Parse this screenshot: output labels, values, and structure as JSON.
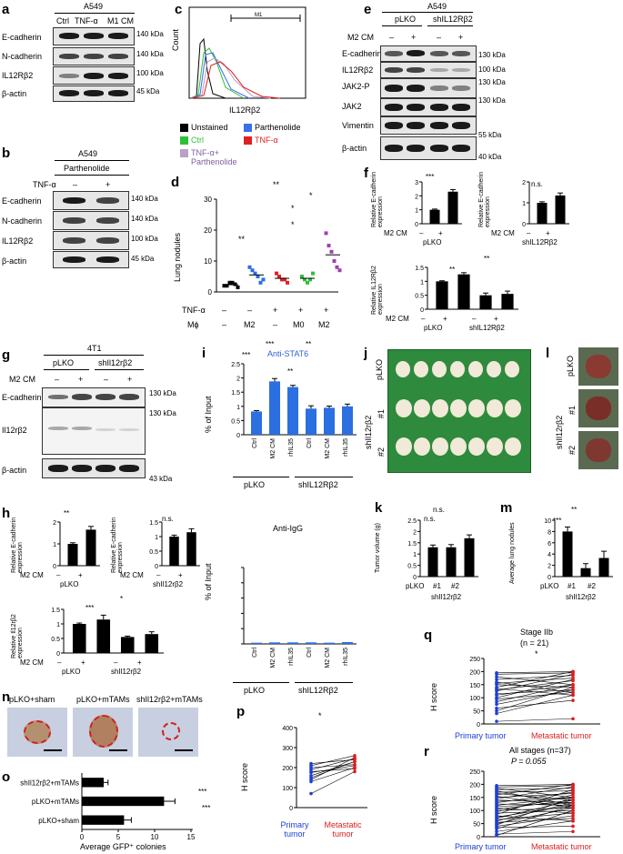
{
  "panels": {
    "a": {
      "letter": "a",
      "cell": "A549",
      "lanes": [
        "Ctrl",
        "TNF-α",
        "M1 CM"
      ],
      "rows": [
        "E-cadherin",
        "N-cadherin",
        "IL12Rβ2",
        "β-actin"
      ],
      "kda": [
        "140 kDa",
        "140 kDa",
        "100 kDa",
        "45 kDa"
      ]
    },
    "b": {
      "letter": "b",
      "cell": "A549",
      "treatment": "Parthenolide",
      "tnf_label": "TNF-α",
      "minus": "–",
      "plus": "+",
      "rows": [
        "E-cadherin",
        "N-cadherin",
        "IL12Rβ2",
        "β-actin"
      ],
      "kda": [
        "140 kDa",
        "140 kDa",
        "100 kDa",
        "45 kDa"
      ]
    },
    "c": {
      "letter": "c",
      "ylabel": "Count",
      "xlabel": "IL12Rβ2",
      "gate": "M1",
      "legend": [
        {
          "label": "Unstained",
          "color": "#000000"
        },
        {
          "label": "Parthenolide",
          "color": "#3a6fe8"
        },
        {
          "label": "Ctrl",
          "color": "#2fbf3b"
        },
        {
          "label": "TNF-α",
          "color": "#e02020"
        },
        {
          "label": "TNF-α+ Parthenolide",
          "color": "#b8a0c8"
        }
      ]
    },
    "d": {
      "letter": "d",
      "ylabel": "Lung nodules",
      "row1_label": "TNF-α",
      "row1": [
        "–",
        "–",
        "+",
        "+",
        "+"
      ],
      "row2_label": "Mϕ",
      "row2": [
        "–",
        "M2",
        "–",
        "M0",
        "M2"
      ],
      "sig": [
        "**",
        "**",
        "*",
        "*",
        "*"
      ]
    },
    "e": {
      "letter": "e",
      "cell": "A549",
      "groups": [
        "pLKO",
        "shIL12Rβ2"
      ],
      "cm_label": "M2 CM",
      "signs": [
        "–",
        "+",
        "–",
        "+"
      ],
      "rows": [
        "E-cadherin",
        "IL12Rβ2",
        "JAK2-P",
        "JAK2",
        "Vimentin",
        "β-actin"
      ],
      "kda": [
        "130 kDa",
        "100 kDa",
        "130 kDa",
        "130 kDa",
        "55 kDa",
        "40 kDa"
      ]
    },
    "f": {
      "letter": "f",
      "ylabel_ecad": "Relative E-cadherin expression",
      "ylabel_il": "Relative IL12Rβ2 expression",
      "cm_label": "M2 CM",
      "signs": [
        "–",
        "+"
      ],
      "groups": [
        "pLKO",
        "shIL12Rβ2"
      ],
      "sig": [
        "***",
        "n.s.",
        "**",
        "**"
      ]
    },
    "g": {
      "letter": "g",
      "cell": "4T1",
      "groups": [
        "pLKO",
        "shIl12rβ2"
      ],
      "cm_label": "M2 CM",
      "signs": [
        "–",
        "+",
        "–",
        "+"
      ],
      "rows": [
        "E-cadherin",
        "Il12rβ2",
        "β-actin"
      ],
      "kda": [
        "130 kDa",
        "130 kDa",
        "43 kDa"
      ]
    },
    "h": {
      "letter": "h",
      "ylabel_ecad": "Relative E-cadherin expression",
      "ylabel_il": "Relative Il12rβ2 expression",
      "cm_label": "M2 CM",
      "signs": [
        "–",
        "+"
      ],
      "groups": [
        "pLKO",
        "shIl12rβ2"
      ],
      "sig": [
        "**",
        "n.s.",
        "***",
        "*"
      ]
    },
    "i": {
      "letter": "i",
      "title_top": "Anti-STAT6",
      "title_bottom": "Anti-IgG",
      "ylabel": "% of Input",
      "groups": [
        "pLKO",
        "shIL12Rβ2"
      ],
      "sig": [
        "***",
        "***",
        "**",
        "**"
      ]
    },
    "j": {
      "letter": "j",
      "rows": [
        "pLKO",
        "#1",
        "#2"
      ],
      "group": "shIl12rβ2"
    },
    "k": {
      "letter": "k",
      "ylabel": "Tumor volume (g)",
      "cats": [
        "pLKO",
        "#1",
        "#2"
      ],
      "group": "shIl12rβ2",
      "sig": [
        "n.s.",
        "n.s."
      ]
    },
    "l": {
      "letter": "l",
      "rows": [
        "pLKO",
        "#1",
        "#2"
      ],
      "group": "shIl12rβ2"
    },
    "m": {
      "letter": "m",
      "ylabel": "Average lung nodules",
      "cats": [
        "pLKO",
        "#1",
        "#2"
      ],
      "group": "shIl12rβ2",
      "sig": [
        "***",
        "**"
      ]
    },
    "n": {
      "letter": "n",
      "titles": [
        "pLKO+sham",
        "pLKO+mTAMs",
        "shIl12rβ2+mTAMs"
      ]
    },
    "o": {
      "letter": "o",
      "xlabel": "Average GFP⁺ colonies",
      "sig": [
        "***",
        "***"
      ]
    },
    "p": {
      "letter": "p",
      "ylabel": "H score",
      "cats": [
        "Primary tumor",
        "Metastatic tumor"
      ],
      "sig": "*"
    },
    "q": {
      "letter": "q",
      "title": "Stage IIb",
      "n": "(n = 21)",
      "sig": "*",
      "ylabel": "H score",
      "cats": [
        "Primary tumor",
        "Metastatic tumor"
      ]
    },
    "r": {
      "letter": "r",
      "title": "All stages (n=37)",
      "p": "P = 0.055",
      "ylabel": "H score",
      "cats": [
        "Primary tumor",
        "Metastatic tumor"
      ]
    }
  },
  "chart_data": [
    {
      "id": "d",
      "type": "scatter",
      "ylabel": "Lung nodules",
      "ylim": [
        0,
        30
      ],
      "yticks": [
        0,
        10,
        20,
        30
      ],
      "series": [
        {
          "color": "#000000",
          "values": [
            2,
            2,
            3,
            3,
            2.5,
            1.5
          ]
        },
        {
          "color": "#2b6fe0",
          "values": [
            8,
            7,
            6,
            5,
            3,
            4
          ]
        },
        {
          "color": "#e02020",
          "values": [
            6,
            5,
            4,
            4,
            3
          ]
        },
        {
          "color": "#2fbf3b",
          "values": [
            5,
            4,
            3,
            4,
            6
          ]
        },
        {
          "color": "#a040b0",
          "values": [
            19,
            15,
            13,
            10,
            8,
            7
          ]
        }
      ]
    },
    {
      "id": "f1",
      "type": "bar",
      "ylim": [
        0,
        3
      ],
      "yticks": [
        0,
        1,
        2,
        3
      ],
      "values": [
        1,
        2.3
      ],
      "errors": [
        0.05,
        0.15
      ]
    },
    {
      "id": "f2",
      "type": "bar",
      "ylim": [
        0,
        2
      ],
      "yticks": [
        0,
        1,
        2
      ],
      "values": [
        1,
        1.35
      ],
      "errors": [
        0.05,
        0.12
      ]
    },
    {
      "id": "f3",
      "type": "bar",
      "ylim": [
        0,
        1.5
      ],
      "yticks": [
        0,
        0.5,
        1,
        1.5
      ],
      "values": [
        1,
        1.25,
        0.5,
        0.55
      ],
      "errors": [
        0.02,
        0.06,
        0.08,
        0.1
      ]
    },
    {
      "id": "h1",
      "type": "bar",
      "ylim": [
        0,
        2
      ],
      "yticks": [
        0,
        1,
        2
      ],
      "values": [
        1,
        1.65
      ],
      "errors": [
        0.05,
        0.15
      ]
    },
    {
      "id": "h2",
      "type": "bar",
      "ylim": [
        0,
        1.5
      ],
      "yticks": [
        0,
        0.5,
        1,
        1.5
      ],
      "values": [
        1,
        1.15
      ],
      "errors": [
        0.05,
        0.12
      ]
    },
    {
      "id": "h3",
      "type": "bar",
      "ylim": [
        0,
        1.5
      ],
      "yticks": [
        0,
        0.5,
        1,
        1.5
      ],
      "values": [
        1,
        1.15,
        0.55,
        0.65
      ],
      "errors": [
        0.03,
        0.15,
        0.03,
        0.08
      ]
    },
    {
      "id": "i_top",
      "type": "bar",
      "title": "Anti-STAT6",
      "ylabel": "% of Input",
      "ylim": [
        0,
        2.5
      ],
      "yticks": [
        0,
        0.5,
        1,
        1.5,
        2,
        2.5
      ],
      "categories": [
        "Ctrl",
        "M2 CM",
        "rhIL35",
        "Ctrl",
        "M2 CM",
        "rhIL35"
      ],
      "values": [
        0.82,
        1.88,
        1.68,
        0.92,
        0.95,
        1.0
      ],
      "errors": [
        0.03,
        0.1,
        0.06,
        0.1,
        0.06,
        0.08
      ]
    },
    {
      "id": "i_bottom",
      "type": "bar",
      "title": "Anti-IgG",
      "ylabel": "% of Input",
      "ylim": [
        0,
        2.5
      ],
      "categories": [
        "Ctrl",
        "M2 CM",
        "rhIL35",
        "Ctrl",
        "M2 CM",
        "rhIL35"
      ],
      "values": [
        0.04,
        0.05,
        0.05,
        0.05,
        0.04,
        0.06
      ]
    },
    {
      "id": "k",
      "type": "bar",
      "ylabel": "Tumor volume (g)",
      "ylim": [
        0,
        2.5
      ],
      "yticks": [
        0,
        0.5,
        1,
        1.5,
        2,
        2.5
      ],
      "categories": [
        "pLKO",
        "#1",
        "#2"
      ],
      "values": [
        1.3,
        1.3,
        1.7
      ],
      "errors": [
        0.1,
        0.12,
        0.15
      ]
    },
    {
      "id": "m",
      "type": "bar",
      "ylabel": "Average lung nodules",
      "ylim": [
        0,
        10
      ],
      "yticks": [
        0,
        2,
        4,
        6,
        8,
        10
      ],
      "categories": [
        "pLKO",
        "#1",
        "#2"
      ],
      "values": [
        8,
        1.5,
        3.3
      ],
      "errors": [
        0.8,
        0.8,
        1.2
      ]
    },
    {
      "id": "o",
      "type": "bar",
      "xlabel": "Average GFP⁺ colonies",
      "xlim": [
        0,
        15
      ],
      "xticks": [
        0,
        5,
        10,
        15
      ],
      "categories": [
        "shIl12rβ2+mTAMs",
        "pLKO+mTAMs",
        "pLKO+sham"
      ],
      "values": [
        3,
        11.3,
        5.8
      ],
      "errors": [
        0.6,
        1.5,
        1.0
      ]
    },
    {
      "id": "p",
      "type": "line",
      "ylabel": "H score",
      "ylim": [
        0,
        400
      ],
      "yticks": [
        0,
        100,
        200,
        300,
        400
      ],
      "categories": [
        "Primary tumor",
        "Metastatic tumor"
      ],
      "pairs": [
        [
          210,
          260
        ],
        [
          200,
          215
        ],
        [
          180,
          195
        ],
        [
          150,
          230
        ],
        [
          140,
          250
        ],
        [
          130,
          200
        ],
        [
          160,
          230
        ],
        [
          220,
          240
        ],
        [
          190,
          245
        ],
        [
          70,
          180
        ],
        [
          175,
          210
        ]
      ]
    },
    {
      "id": "q",
      "type": "line",
      "title": "Stage IIb",
      "ylabel": "H score",
      "ylim": [
        0,
        250
      ],
      "yticks": [
        0,
        50,
        100,
        150,
        200,
        250
      ],
      "categories": [
        "Primary tumor",
        "Metastatic tumor"
      ],
      "pairs": [
        [
          195,
          200
        ],
        [
          190,
          195
        ],
        [
          180,
          150
        ],
        [
          170,
          185
        ],
        [
          160,
          120
        ],
        [
          155,
          175
        ],
        [
          150,
          140
        ],
        [
          140,
          200
        ],
        [
          135,
          110
        ],
        [
          130,
          165
        ],
        [
          125,
          190
        ],
        [
          115,
          130
        ],
        [
          110,
          150
        ],
        [
          100,
          170
        ],
        [
          95,
          120
        ],
        [
          85,
          150
        ],
        [
          75,
          130
        ],
        [
          60,
          90
        ],
        [
          50,
          140
        ],
        [
          40,
          110
        ],
        [
          10,
          20
        ]
      ]
    },
    {
      "id": "r",
      "type": "line",
      "title": "All stages (n=37)",
      "ylabel": "H score",
      "ylim": [
        0,
        250
      ],
      "yticks": [
        0,
        50,
        100,
        150,
        200,
        250
      ],
      "categories": [
        "Primary tumor",
        "Metastatic tumor"
      ],
      "pairs": [
        [
          195,
          200
        ],
        [
          190,
          195
        ],
        [
          185,
          150
        ],
        [
          180,
          185
        ],
        [
          175,
          120
        ],
        [
          170,
          175
        ],
        [
          165,
          140
        ],
        [
          160,
          200
        ],
        [
          155,
          110
        ],
        [
          150,
          165
        ],
        [
          145,
          190
        ],
        [
          140,
          130
        ],
        [
          135,
          150
        ],
        [
          130,
          170
        ],
        [
          125,
          120
        ],
        [
          120,
          150
        ],
        [
          115,
          130
        ],
        [
          110,
          90
        ],
        [
          105,
          140
        ],
        [
          100,
          110
        ],
        [
          95,
          160
        ],
        [
          90,
          100
        ],
        [
          85,
          180
        ],
        [
          80,
          60
        ],
        [
          75,
          120
        ],
        [
          70,
          140
        ],
        [
          65,
          90
        ],
        [
          60,
          130
        ],
        [
          55,
          70
        ],
        [
          50,
          110
        ],
        [
          45,
          150
        ],
        [
          40,
          80
        ],
        [
          35,
          40
        ],
        [
          30,
          120
        ],
        [
          20,
          60
        ],
        [
          10,
          20
        ],
        [
          5,
          100
        ]
      ]
    }
  ]
}
